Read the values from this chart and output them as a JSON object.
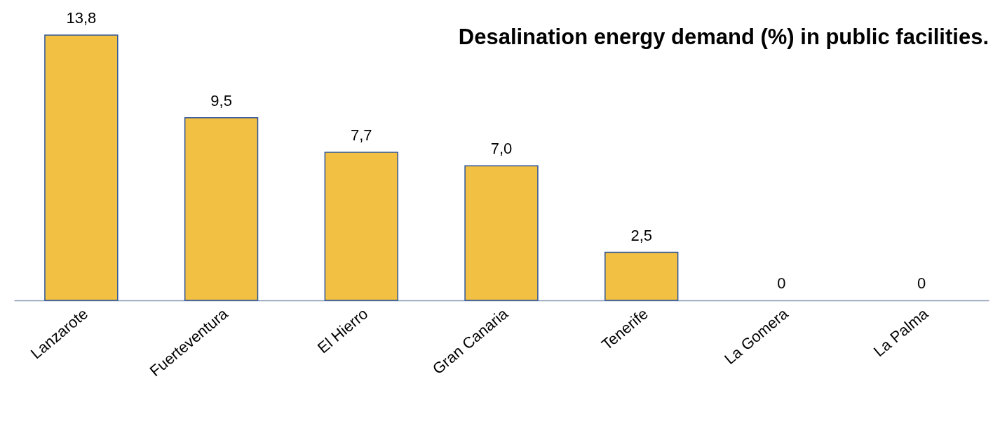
{
  "chart_data": {
    "type": "bar",
    "title": "Desalination energy demand (%) in public facilities.",
    "categories": [
      "Lanzarote",
      "Fuerteventura",
      "El Hierro",
      "Gran Canaria",
      "Tenerife",
      "La Gomera",
      "La Palma"
    ],
    "values": [
      13.8,
      9.5,
      7.7,
      7.0,
      2.5,
      0,
      0
    ],
    "value_labels": [
      "13,8",
      "9,5",
      "7,7",
      "7,0",
      "2,5",
      "0",
      "0"
    ],
    "color": "#f2c043",
    "grid": false
  }
}
